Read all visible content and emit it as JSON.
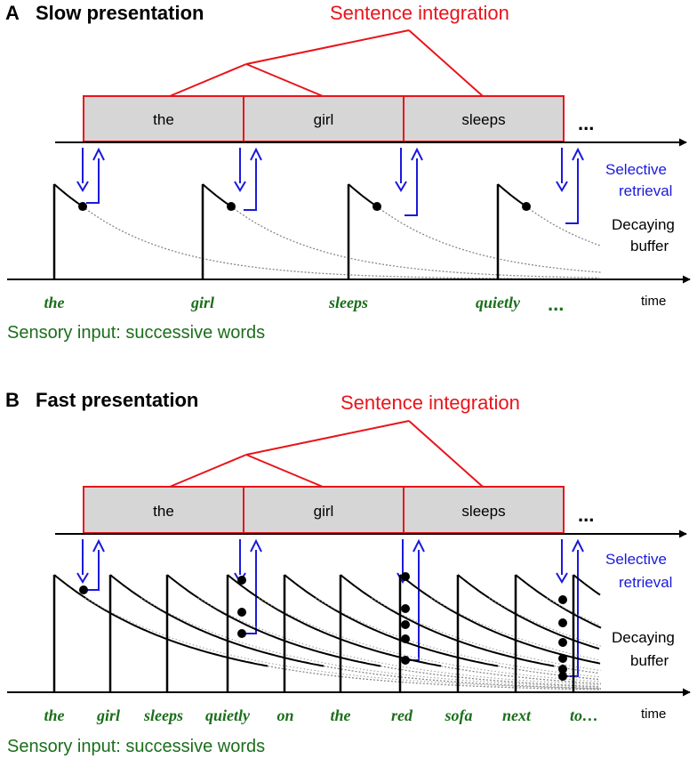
{
  "colors": {
    "integration": "#e8141b",
    "retrieval": "#1a1adb",
    "sensory": "#1b6e1b",
    "box_fill": "#d6d6d6",
    "buffer": "#000000"
  },
  "panels": [
    {
      "letter": "A",
      "title": "Slow presentation",
      "integration_label": "Sentence integration",
      "boxes": [
        "the",
        "girl",
        "sleeps"
      ],
      "ellipsis": "...",
      "retrieval_label_line1": "Selective",
      "retrieval_label_line2": "retrieval",
      "buffer_label_line1": "Decaying",
      "buffer_label_line2": "buffer",
      "time_label": "time",
      "words": [
        "the",
        "girl",
        "sleeps",
        "quietly"
      ],
      "word_ellipsis": "...",
      "sensory_label": "Sensory input: successive words"
    },
    {
      "letter": "B",
      "title": "Fast presentation",
      "integration_label": "Sentence integration",
      "boxes": [
        "the",
        "girl",
        "sleeps"
      ],
      "ellipsis": "...",
      "retrieval_label_line1": "Selective",
      "retrieval_label_line2": "retrieval",
      "buffer_label_line1": "Decaying",
      "buffer_label_line2": "buffer",
      "time_label": "time",
      "words": [
        "the",
        "girl",
        "sleeps",
        "quietly",
        "on",
        "the",
        "red",
        "sofa",
        "next",
        "to…"
      ],
      "sensory_label": "Sensory input: successive words"
    }
  ]
}
